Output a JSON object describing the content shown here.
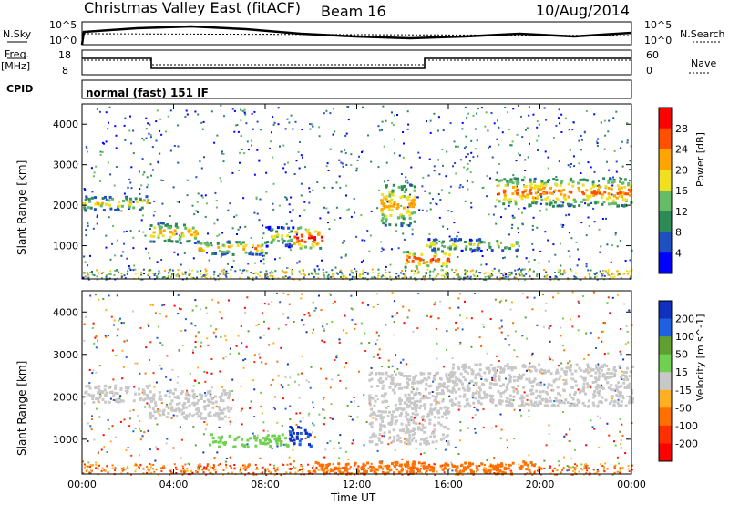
{
  "header": {
    "station": "Christmas Valley East (fitACF)",
    "beam": "Beam 16",
    "date": "10/Aug/2014"
  },
  "side_labels": {
    "nsky": "N.Sky",
    "nsearch": "N.Search",
    "freq": "Freq.",
    "freq_unit": "[MHz]",
    "nave": "Nave",
    "cpid": "CPID"
  },
  "strip_ticks": {
    "noise_left": [
      "10^5",
      "10^0"
    ],
    "noise_right": [
      "10^5",
      "10^0"
    ],
    "freq_left": [
      "18",
      "8"
    ],
    "nave_right": [
      "60",
      "0"
    ]
  },
  "cpid_text": "normal (fast) 151 IF",
  "chart_data": [
    {
      "type": "heatmap",
      "title": "",
      "xlabel": "Time UT",
      "ylabel": "Slant Range [km]",
      "x_ticks": [
        "00:00",
        "04:00",
        "08:00",
        "12:00",
        "16:00",
        "20:00",
        "00:00"
      ],
      "y_ticks": [
        "1000",
        "2000",
        "3000",
        "4000"
      ],
      "xlim_hours": [
        0,
        24
      ],
      "ylim_km": [
        180,
        4500
      ],
      "colorbar": {
        "label": "Power [dB]",
        "ticks": [
          "4",
          "8",
          "12",
          "16",
          "20",
          "24",
          "28"
        ],
        "range": [
          0,
          30
        ],
        "colors": [
          "#0000ff",
          "#2050c0",
          "#2e8b57",
          "#66bb66",
          "#f0e020",
          "#ffa500",
          "#ff5000",
          "#ff0000"
        ]
      },
      "features": [
        {
          "t0": 0.0,
          "t1": 2.9,
          "r0": 1900,
          "r1": 2250,
          "power": 22
        },
        {
          "t0": 2.9,
          "t1": 5.0,
          "r0": 1100,
          "r1": 1600,
          "power": 24
        },
        {
          "t0": 5.0,
          "t1": 8.0,
          "r0": 800,
          "r1": 1150,
          "power": 24
        },
        {
          "t0": 8.0,
          "t1": 9.2,
          "r0": 1000,
          "r1": 1500,
          "power": 20
        },
        {
          "t0": 9.2,
          "t1": 10.5,
          "r0": 950,
          "r1": 1500,
          "power": 30
        },
        {
          "t0": 13.0,
          "t1": 14.5,
          "r0": 1500,
          "r1": 2600,
          "power": 24
        },
        {
          "t0": 14.0,
          "t1": 16.0,
          "r0": 500,
          "r1": 900,
          "power": 28
        },
        {
          "t0": 15.0,
          "t1": 19.0,
          "r0": 900,
          "r1": 1200,
          "power": 20
        },
        {
          "t0": 18.0,
          "t1": 24.0,
          "r0": 2000,
          "r1": 2700,
          "power": 26
        }
      ]
    },
    {
      "type": "heatmap",
      "title": "",
      "xlabel": "Time UT",
      "ylabel": "Slant Range [km]",
      "x_ticks": [
        "00:00",
        "04:00",
        "08:00",
        "12:00",
        "16:00",
        "20:00",
        "00:00"
      ],
      "y_ticks": [
        "1000",
        "2000",
        "3000",
        "4000"
      ],
      "xlim_hours": [
        0,
        24
      ],
      "ylim_km": [
        180,
        4500
      ],
      "colorbar": {
        "label": "Velocity [m s^-1]",
        "ticks": [
          "200",
          "100",
          "50",
          "15",
          "-15",
          "-50",
          "-100",
          "-200"
        ],
        "range": [
          -250,
          250
        ],
        "colors": [
          "#1030c0",
          "#2060e0",
          "#60a030",
          "#70d050",
          "#c8c8c8",
          "#ffb020",
          "#ff7000",
          "#ff3000",
          "#ff0000"
        ]
      },
      "features": [
        {
          "t0": 0.0,
          "t1": 2.9,
          "r0": 1900,
          "r1": 2300,
          "velocity": 0
        },
        {
          "t0": 2.9,
          "t1": 6.5,
          "r0": 1500,
          "r1": 2200,
          "velocity": 0
        },
        {
          "t0": 5.5,
          "t1": 9.0,
          "r0": 850,
          "r1": 1150,
          "velocity": 40
        },
        {
          "t0": 9.0,
          "t1": 10.0,
          "r0": 850,
          "r1": 1350,
          "velocity": 200
        },
        {
          "t0": 12.5,
          "t1": 16.0,
          "r0": 900,
          "r1": 2600,
          "velocity": 0
        },
        {
          "t0": 16.0,
          "t1": 24.0,
          "r0": 1800,
          "r1": 2800,
          "velocity": 0
        },
        {
          "t0": 10.0,
          "t1": 20.0,
          "r0": 200,
          "r1": 500,
          "velocity": -60
        }
      ]
    }
  ]
}
